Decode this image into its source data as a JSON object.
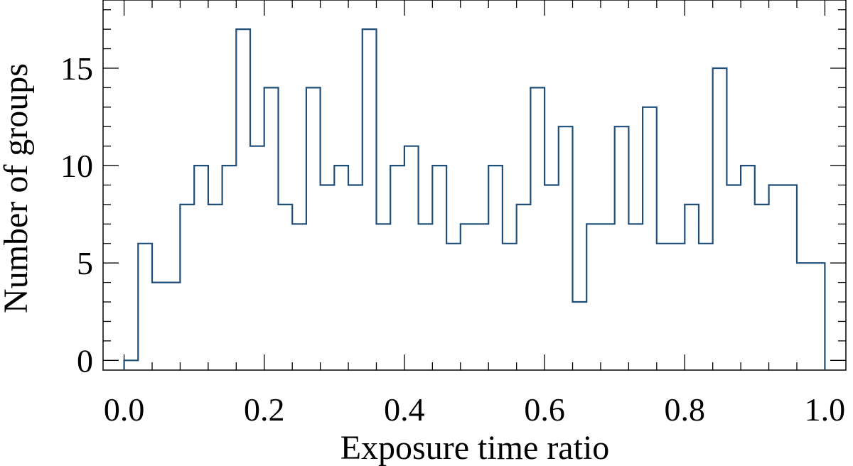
{
  "colors": {
    "line": "#1f4e79",
    "axis": "#000000",
    "background": "#ffffff"
  },
  "chart_data": {
    "type": "histogram",
    "title": "",
    "xlabel": "Exposure time ratio",
    "ylabel": "Number of groups",
    "xlim": [
      0.0,
      1.0
    ],
    "ylim": [
      -0.5,
      18.5
    ],
    "xticks": [
      0.0,
      0.2,
      0.4,
      0.6,
      0.8,
      1.0
    ],
    "xtick_labels": [
      "0.0",
      "0.2",
      "0.4",
      "0.6",
      "0.8",
      "1.0"
    ],
    "yticks": [
      0,
      5,
      10,
      15
    ],
    "ytick_labels": [
      "0",
      "5",
      "10",
      "15"
    ],
    "bin_width": 0.02,
    "bin_starts": [
      0.0,
      0.02,
      0.04,
      0.06,
      0.08,
      0.1,
      0.12,
      0.14,
      0.16,
      0.18,
      0.2,
      0.22,
      0.24,
      0.26,
      0.28,
      0.3,
      0.32,
      0.34,
      0.36,
      0.38,
      0.4,
      0.42,
      0.44,
      0.46,
      0.48,
      0.5,
      0.52,
      0.54,
      0.56,
      0.58,
      0.6,
      0.62,
      0.64,
      0.66,
      0.68,
      0.7,
      0.72,
      0.74,
      0.76,
      0.78,
      0.8,
      0.82,
      0.84,
      0.86,
      0.88,
      0.9,
      0.92,
      0.94,
      0.96,
      0.98
    ],
    "counts": [
      0,
      6,
      4,
      4,
      8,
      10,
      8,
      10,
      17,
      11,
      14,
      8,
      7,
      14,
      9,
      10,
      9,
      17,
      7,
      10,
      11,
      7,
      10,
      6,
      7,
      7,
      10,
      6,
      8,
      14,
      9,
      12,
      3,
      7,
      7,
      12,
      7,
      13,
      6,
      6,
      8,
      6,
      15,
      9,
      10,
      8,
      9,
      9,
      5,
      5
    ],
    "grid": false,
    "legend": "none"
  }
}
